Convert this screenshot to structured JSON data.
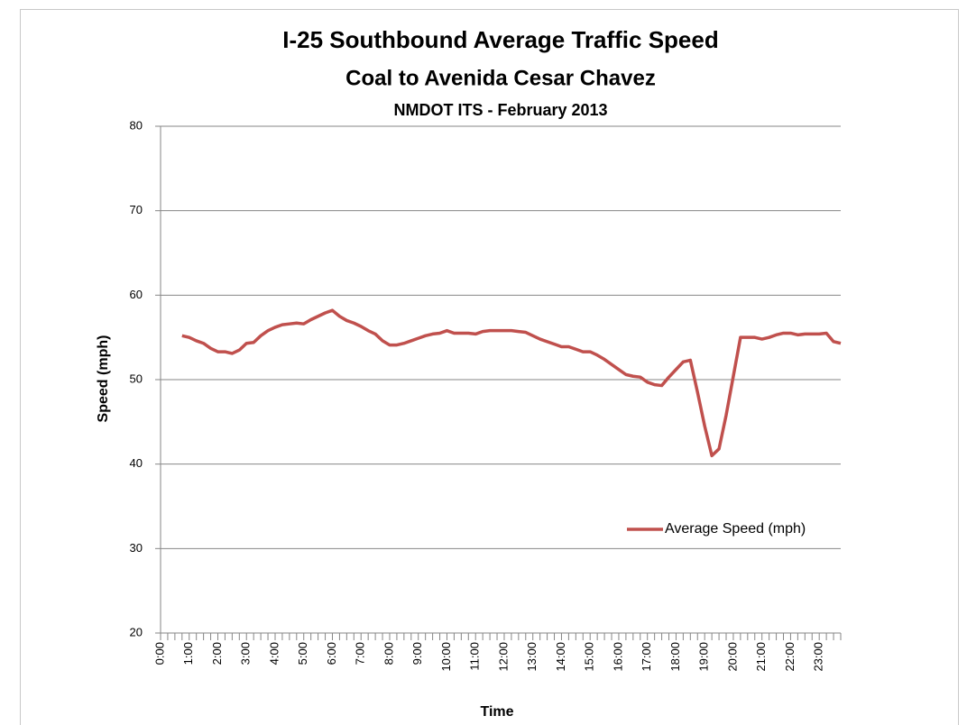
{
  "chart_data": {
    "type": "line",
    "title": "I-25 Southbound Average Traffic Speed",
    "subtitle": [
      "Coal to Avenida Cesar Chavez",
      "NMDOT ITS - February 2013"
    ],
    "xlabel": "Time",
    "ylabel": "Speed (mph)",
    "categories": [
      "0:00",
      null,
      null,
      null,
      "1:00",
      null,
      null,
      null,
      "2:00",
      null,
      null,
      null,
      "3:00",
      null,
      null,
      null,
      "4:00",
      null,
      null,
      null,
      "5:00",
      null,
      null,
      null,
      "6:00",
      null,
      null,
      null,
      "7:00",
      null,
      null,
      null,
      "8:00",
      null,
      null,
      null,
      "9:00",
      null,
      null,
      null,
      "10:00",
      null,
      null,
      null,
      "11:00",
      null,
      null,
      null,
      "12:00",
      null,
      null,
      null,
      "13:00",
      null,
      null,
      null,
      "14:00",
      null,
      null,
      null,
      "15:00",
      null,
      null,
      null,
      "16:00",
      null,
      null,
      null,
      "17:00",
      null,
      null,
      null,
      "18:00",
      null,
      null,
      null,
      "19:00",
      null,
      null,
      null,
      "20:00",
      null,
      null,
      null,
      "21:00",
      null,
      null,
      null,
      "22:00",
      null,
      null,
      null,
      "23:00",
      null,
      null,
      null
    ],
    "series": [
      {
        "name": "Average Speed (mph)",
        "color": "#c0504d",
        "values": [
          null,
          null,
          null,
          55.2,
          55.0,
          54.6,
          54.3,
          53.7,
          53.3,
          53.3,
          53.1,
          53.5,
          54.3,
          54.4,
          55.2,
          55.8,
          56.2,
          56.5,
          56.6,
          56.7,
          56.6,
          57.1,
          57.5,
          57.9,
          58.2,
          57.5,
          57.0,
          56.7,
          56.3,
          55.8,
          55.4,
          54.6,
          54.1,
          54.1,
          54.3,
          54.6,
          54.9,
          55.2,
          55.4,
          55.5,
          55.8,
          55.5,
          55.5,
          55.5,
          55.4,
          55.7,
          55.8,
          55.8,
          55.8,
          55.8,
          55.7,
          55.6,
          55.2,
          54.8,
          54.5,
          54.2,
          53.9,
          53.9,
          53.6,
          53.3,
          53.3,
          52.9,
          52.4,
          51.8,
          51.2,
          50.6,
          50.4,
          50.3,
          49.7,
          49.4,
          49.3,
          50.3,
          51.2,
          52.1,
          52.3,
          48.5,
          44.5,
          41.0,
          41.8,
          45.8,
          50.4,
          55.0,
          55.0,
          55.0,
          54.8,
          55.0,
          55.3,
          55.5,
          55.5,
          55.3,
          55.4,
          55.4,
          55.4,
          55.5,
          54.5,
          54.3
        ]
      }
    ],
    "ylim": [
      20,
      80
    ],
    "yticks": [
      20,
      30,
      40,
      50,
      60,
      70,
      80
    ],
    "grid": true,
    "legend": "right"
  }
}
